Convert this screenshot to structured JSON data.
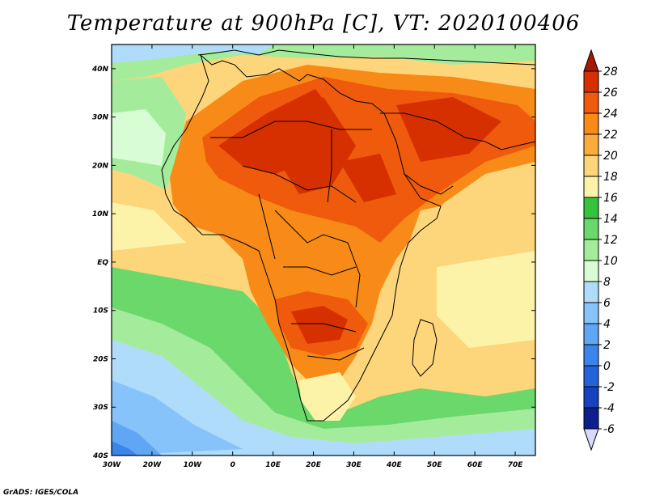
{
  "title": "Temperature at 900hPa [C], VT: 2020100406",
  "credit": "GrADS: IGES/COLA",
  "map": {
    "lon_labels": [
      "30W",
      "20W",
      "10W",
      "0",
      "10E",
      "20E",
      "30E",
      "40E",
      "50E",
      "60E",
      "70E"
    ],
    "lat_labels": [
      "40N",
      "30N",
      "20N",
      "10N",
      "EQ",
      "10S",
      "20S",
      "30S",
      "40S"
    ],
    "lon_range": [
      -30,
      75
    ],
    "lat_range": [
      -40,
      45
    ]
  },
  "colorbar": {
    "labels": [
      "28",
      "26",
      "24",
      "22",
      "20",
      "18",
      "16",
      "14",
      "12",
      "10",
      "8",
      "6",
      "4",
      "2",
      "0",
      "-2",
      "-4",
      "-6"
    ],
    "colors": [
      "#a51a00",
      "#d62f00",
      "#ef5a0c",
      "#f88a18",
      "#fbab3c",
      "#fdd57a",
      "#fdf3a8",
      "#36c23c",
      "#6ad86a",
      "#a4ec9c",
      "#d8fcd4",
      "#b0dcfb",
      "#86c3fa",
      "#5fa6f4",
      "#3b84ea",
      "#2362db",
      "#1742be",
      "#0d1f8c",
      "#08106a"
    ]
  }
}
